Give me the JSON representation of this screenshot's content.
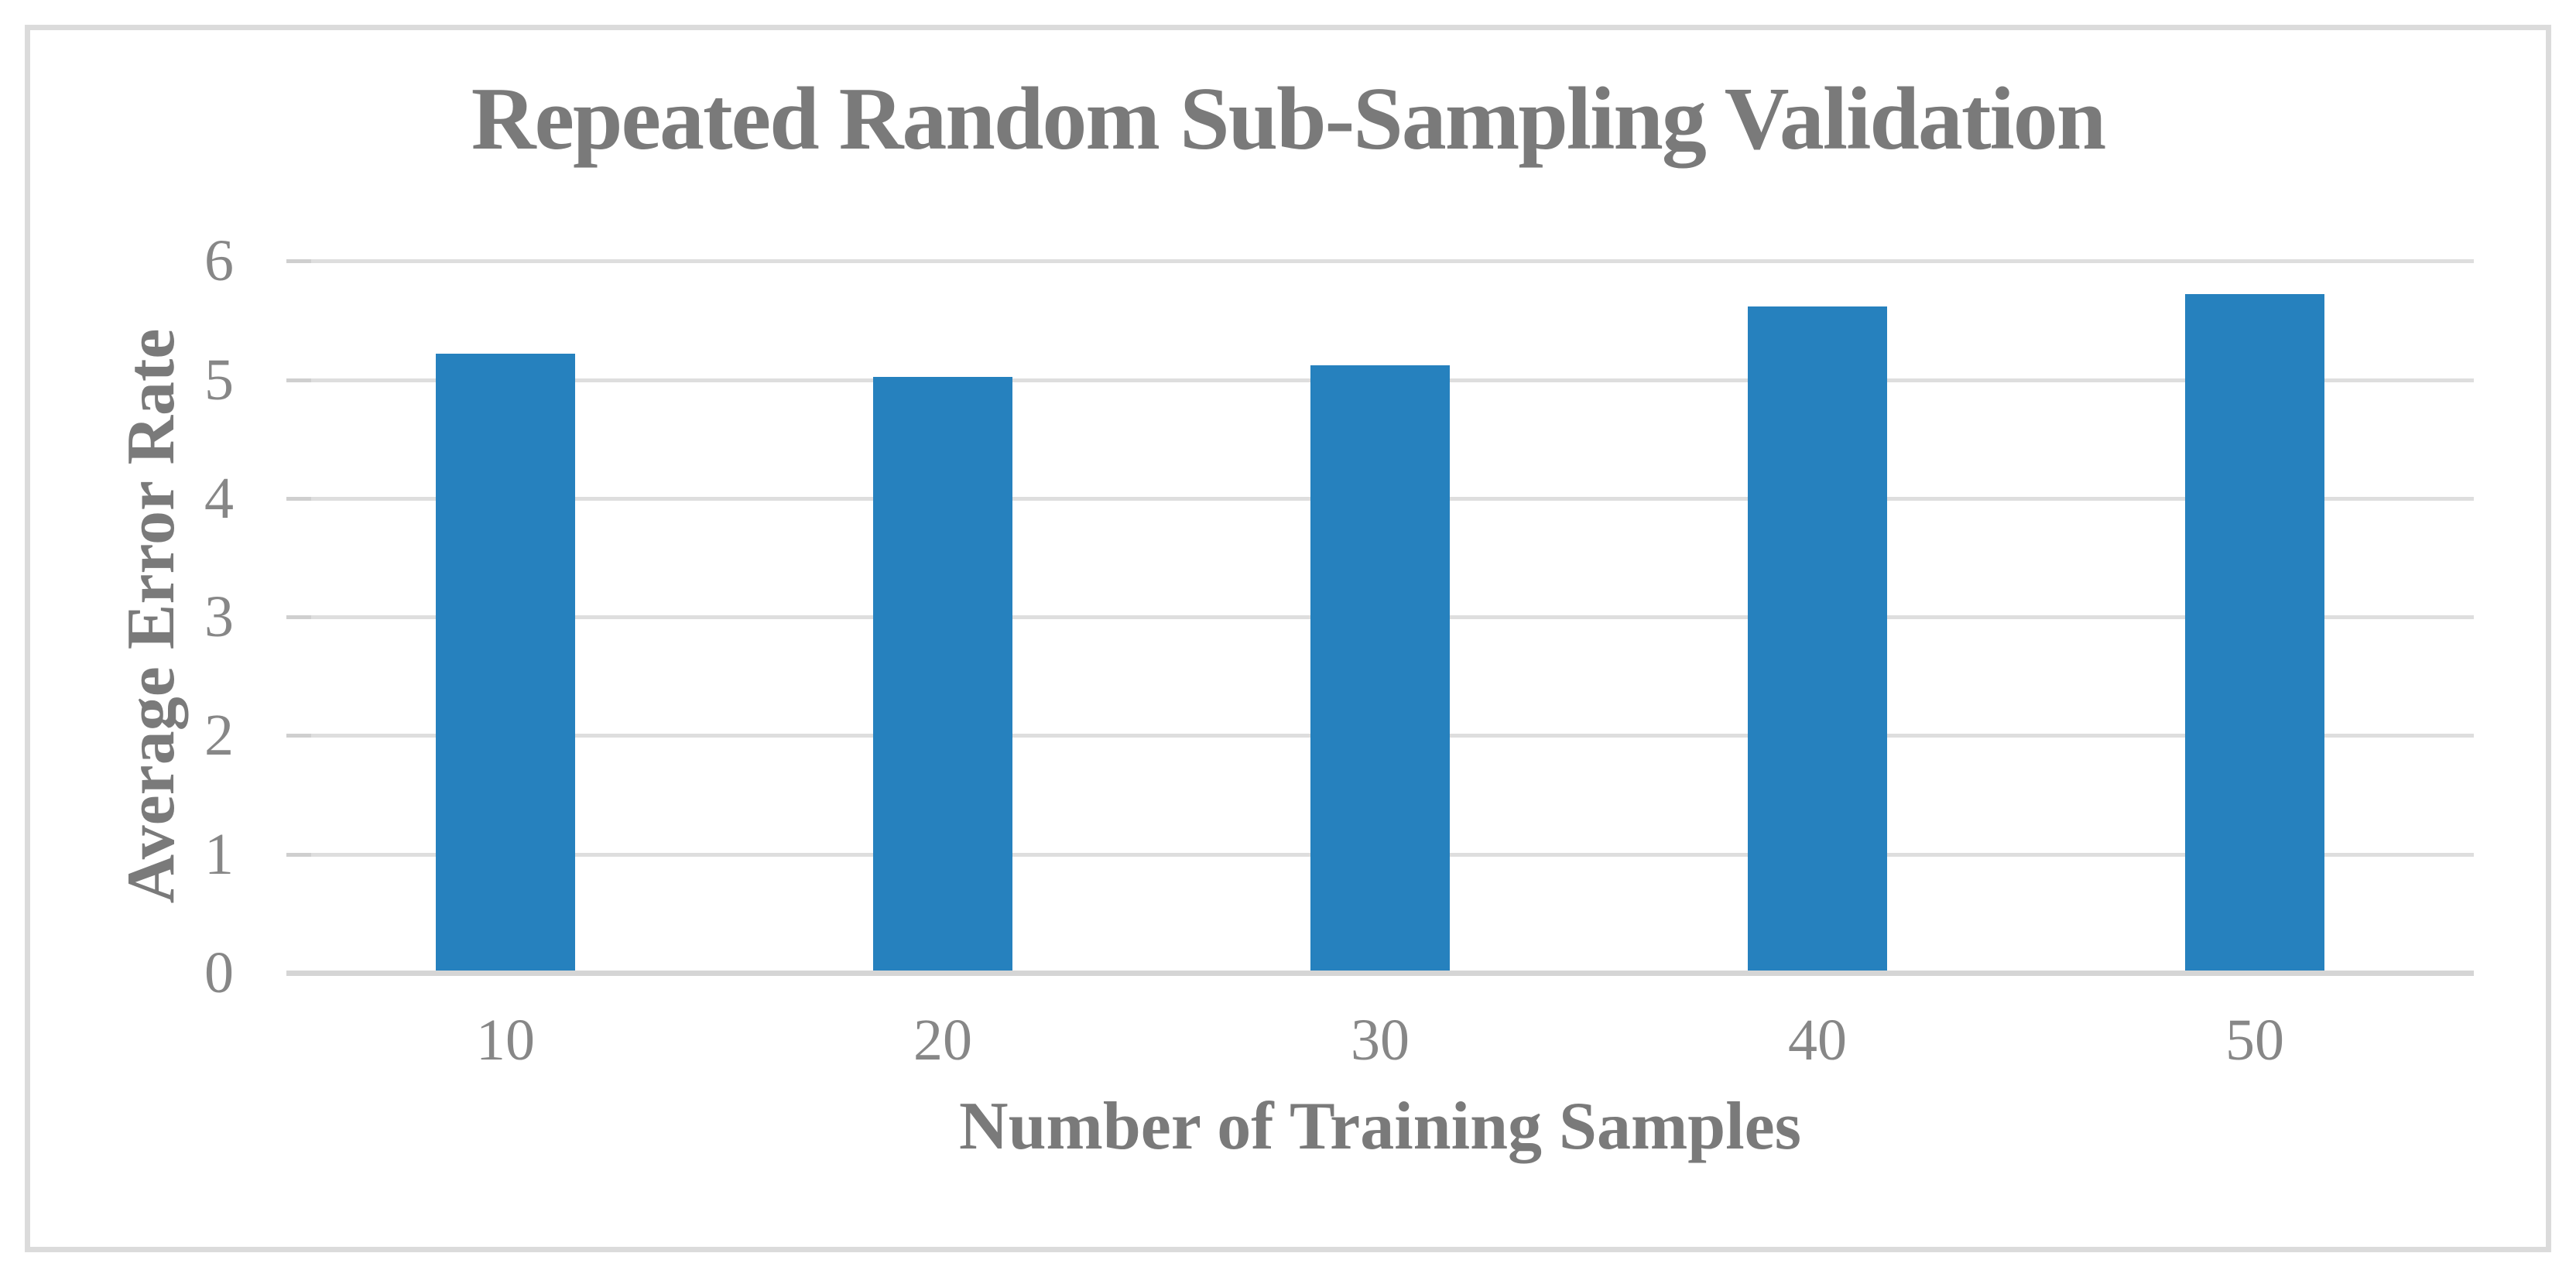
{
  "chart_data": {
    "type": "bar",
    "title": "Repeated Random Sub-Sampling Validation",
    "xlabel": "Number of Training Samples",
    "ylabel": "Average Error Rate",
    "categories": [
      "10",
      "20",
      "30",
      "40",
      "50"
    ],
    "values": [
      5.2,
      5.0,
      5.1,
      5.6,
      5.7
    ],
    "ylim": [
      0,
      6
    ],
    "yticks": [
      0,
      1,
      2,
      3,
      4,
      5,
      6
    ],
    "grid": "horizontal",
    "legend": "none",
    "colors": {
      "bar": "#2681BE",
      "title_text": "#7A7A7A",
      "axis_title_text": "#7A7A7A",
      "tick_text": "#878787",
      "gridline": "#DEDEDE",
      "axis_line": "#D5D5D5",
      "tick_mark": "#CFCFCF",
      "frame_border": "#DBDBDB",
      "background": "#FFFFFF"
    }
  }
}
